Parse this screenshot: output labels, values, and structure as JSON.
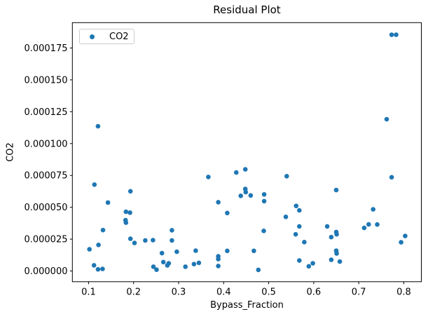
{
  "chart_data": {
    "type": "scatter",
    "title": "Residual Plot",
    "xlabel": "Bypass_Fraction",
    "ylabel": "CO2",
    "grid": false,
    "legend": {
      "position": "upper left",
      "entries": [
        "CO2"
      ]
    },
    "marker_color": "#1f77b4",
    "axis_color": "#000000",
    "xlim": [
      0.064,
      0.839
    ],
    "ylim": [
      -8.4e-06,
      0.0001949
    ],
    "xticks": {
      "values": [
        0.1,
        0.2,
        0.3,
        0.4,
        0.5,
        0.6,
        0.7,
        0.8
      ],
      "labels": [
        "0.1",
        "0.2",
        "0.3",
        "0.4",
        "0.5",
        "0.6",
        "0.7",
        "0.8"
      ]
    },
    "yticks": {
      "values": [
        0.0,
        2.5e-05,
        5e-05,
        7.5e-05,
        0.0001,
        0.000125,
        0.00015,
        0.000175
      ],
      "labels": [
        "0.000000",
        "0.000025",
        "0.000050",
        "0.000075",
        "0.000100",
        "0.000125",
        "0.000150",
        "0.000175"
      ]
    },
    "series": [
      {
        "name": "CO2",
        "points": [
          [
            0.102,
            1.7e-05
          ],
          [
            0.113,
            6.78e-05
          ],
          [
            0.112,
            4.5e-06
          ],
          [
            0.121,
            0.0001136
          ],
          [
            0.122,
            2.05e-05
          ],
          [
            0.121,
            1.3e-06
          ],
          [
            0.131,
            1.6e-06
          ],
          [
            0.132,
            3.21e-05
          ],
          [
            0.143,
            5.37e-05
          ],
          [
            0.182,
            3.99e-05
          ],
          [
            0.183,
            4.65e-05
          ],
          [
            0.183,
            3.79e-05
          ],
          [
            0.192,
            4.58e-05
          ],
          [
            0.193,
            6.26e-05
          ],
          [
            0.193,
            2.53e-05
          ],
          [
            0.202,
            2.2e-05
          ],
          [
            0.226,
            2.4e-05
          ],
          [
            0.243,
            2.42e-05
          ],
          [
            0.244,
            3.4e-06
          ],
          [
            0.251,
            1e-06
          ],
          [
            0.266,
            7e-06
          ],
          [
            0.263,
            1.4e-05
          ],
          [
            0.275,
            4.4e-06
          ],
          [
            0.278,
            6e-06
          ],
          [
            0.285,
            3.2e-05
          ],
          [
            0.285,
            2.4e-05
          ],
          [
            0.296,
            1.51e-05
          ],
          [
            0.315,
            3.4e-06
          ],
          [
            0.334,
            5.4e-06
          ],
          [
            0.338,
            1.6e-05
          ],
          [
            0.345,
            6.4e-06
          ],
          [
            0.366,
            7.38e-05
          ],
          [
            0.388,
            5.4e-05
          ],
          [
            0.388,
            1.15e-05
          ],
          [
            0.388,
            9.3e-06
          ],
          [
            0.388,
            3.9e-06
          ],
          [
            0.408,
            4.55e-05
          ],
          [
            0.408,
            1.58e-05
          ],
          [
            0.428,
            7.73e-05
          ],
          [
            0.438,
            5.9e-05
          ],
          [
            0.448,
            7.98e-05
          ],
          [
            0.448,
            6.44e-05
          ],
          [
            0.449,
            6.19e-05
          ],
          [
            0.46,
            5.93e-05
          ],
          [
            0.467,
            1.58e-05
          ],
          [
            0.477,
            9e-07
          ],
          [
            0.489,
            3.15e-05
          ],
          [
            0.49,
            6.01e-05
          ],
          [
            0.49,
            5.48e-05
          ],
          [
            0.538,
            4.25e-05
          ],
          [
            0.54,
            7.44e-05
          ],
          [
            0.56,
            2.88e-05
          ],
          [
            0.561,
            5.11e-05
          ],
          [
            0.568,
            4.76e-05
          ],
          [
            0.568,
            3.5e-05
          ],
          [
            0.568,
            8.2e-06
          ],
          [
            0.579,
            2.27e-05
          ],
          [
            0.589,
            3.7e-06
          ],
          [
            0.598,
            6e-06
          ],
          [
            0.63,
            3.5e-05
          ],
          [
            0.639,
            2.66e-05
          ],
          [
            0.639,
            8.8e-06
          ],
          [
            0.65,
            6.35e-05
          ],
          [
            0.65,
            3.06e-05
          ],
          [
            0.651,
            2.88e-05
          ],
          [
            0.65,
            1.59e-05
          ],
          [
            0.651,
            1.37e-05
          ],
          [
            0.658,
            7.4e-06
          ],
          [
            0.712,
            3.38e-05
          ],
          [
            0.722,
            3.66e-05
          ],
          [
            0.732,
            4.84e-05
          ],
          [
            0.741,
            3.65e-05
          ],
          [
            0.762,
            0.0001191
          ],
          [
            0.773,
            0.0001854
          ],
          [
            0.783,
            0.0001854
          ],
          [
            0.773,
            7.36e-05
          ],
          [
            0.794,
            2.25e-05
          ],
          [
            0.803,
            2.75e-05
          ]
        ]
      }
    ]
  }
}
